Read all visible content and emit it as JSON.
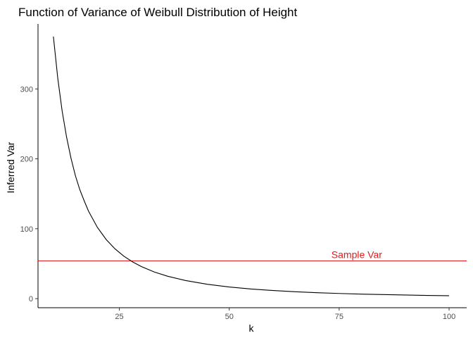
{
  "chart_data": {
    "type": "line",
    "title": "Function of Variance of Weibull Distribution of Height",
    "xlabel": "k",
    "ylabel": "Inferred Var",
    "xlim": [
      6.5,
      104
    ],
    "ylim": [
      -13,
      393
    ],
    "x_ticks": [
      25,
      50,
      75,
      100
    ],
    "x_tick_labels": [
      "25",
      "50",
      "75",
      "100"
    ],
    "y_ticks": [
      0,
      100,
      200,
      300
    ],
    "y_tick_labels": [
      "0",
      "100",
      "200",
      "300"
    ],
    "grid": false,
    "series": [
      {
        "color": "#000000",
        "x": [
          10,
          11,
          12,
          13,
          14,
          15,
          16,
          17,
          18,
          20,
          22,
          24,
          26,
          28,
          30,
          33,
          36,
          40,
          45,
          50,
          55,
          60,
          65,
          70,
          75,
          80,
          85,
          90,
          95,
          100
        ],
        "y": [
          375,
          315,
          268,
          231,
          201,
          176,
          156,
          140,
          125,
          102,
          84.6,
          71.3,
          60.9,
          52.6,
          45.9,
          38.0,
          32.0,
          26.0,
          20.6,
          16.7,
          13.8,
          11.6,
          9.9,
          8.5,
          7.4,
          6.5,
          5.8,
          5.2,
          4.6,
          4.2
        ]
      }
    ],
    "hline": {
      "y": 54,
      "color": "#e41a1c",
      "label": "Sample Var",
      "label_x": 79
    }
  }
}
